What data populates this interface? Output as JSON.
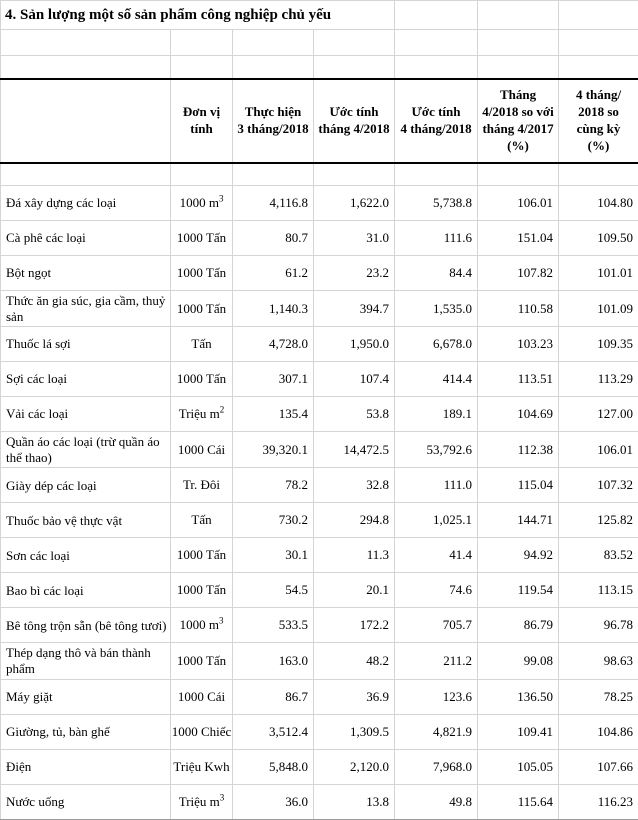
{
  "title": "4. Sản lượng một số sản phẩm công nghiệp chủ yếu",
  "colors": {
    "grid_line": "#d4d4d4",
    "heavy_line": "#000000",
    "text": "#000000",
    "background": "#ffffff"
  },
  "table": {
    "headers": [
      "",
      "Đơn vị\ntính",
      "Thực hiện\n3 tháng/2018",
      "Ước tính\ntháng 4/2018",
      "Ước tính\n4 tháng/2018",
      "Tháng\n4/2018 so với\ntháng 4/2017\n(%)",
      "4 tháng/\n2018 so\ncùng kỳ\n(%)"
    ],
    "rows": [
      {
        "name": "Đá xây dựng các loại",
        "unit": "1000 m",
        "unit_sup": "3",
        "values": [
          "4,116.8",
          "1,622.0",
          "5,738.8",
          "106.01",
          "104.80"
        ]
      },
      {
        "name": "Cà phê các loại",
        "unit": "1000 Tấn",
        "unit_sup": "",
        "values": [
          "80.7",
          "31.0",
          "111.6",
          "151.04",
          "109.50"
        ]
      },
      {
        "name": "Bột ngọt",
        "unit": "1000 Tấn",
        "unit_sup": "",
        "values": [
          "61.2",
          "23.2",
          "84.4",
          "107.82",
          "101.01"
        ]
      },
      {
        "name": "Thức ăn gia súc, gia cầm, thuỷ sản",
        "unit": "1000 Tấn",
        "unit_sup": "",
        "values": [
          "1,140.3",
          "394.7",
          "1,535.0",
          "110.58",
          "101.09"
        ]
      },
      {
        "name": "Thuốc lá sợi",
        "unit": "Tấn",
        "unit_sup": "",
        "values": [
          "4,728.0",
          "1,950.0",
          "6,678.0",
          "103.23",
          "109.35"
        ]
      },
      {
        "name": "Sợi các loại",
        "unit": "1000 Tấn",
        "unit_sup": "",
        "values": [
          "307.1",
          "107.4",
          "414.4",
          "113.51",
          "113.29"
        ]
      },
      {
        "name": "Vải các loại",
        "unit": "Triệu m",
        "unit_sup": "2",
        "values": [
          "135.4",
          "53.8",
          "189.1",
          "104.69",
          "127.00"
        ]
      },
      {
        "name": "Quần áo các loại (trừ quần áo thể thao)",
        "unit": "1000 Cái",
        "unit_sup": "",
        "values": [
          "39,320.1",
          "14,472.5",
          "53,792.6",
          "112.38",
          "106.01"
        ]
      },
      {
        "name": "Giày dép các loại",
        "unit": "Tr. Đôi",
        "unit_sup": "",
        "values": [
          "78.2",
          "32.8",
          "111.0",
          "115.04",
          "107.32"
        ]
      },
      {
        "name": "Thuốc bảo vệ thực vật",
        "unit": "Tấn",
        "unit_sup": "",
        "values": [
          "730.2",
          "294.8",
          "1,025.1",
          "144.71",
          "125.82"
        ]
      },
      {
        "name": "Sơn các loại",
        "unit": "1000 Tấn",
        "unit_sup": "",
        "values": [
          "30.1",
          "11.3",
          "41.4",
          "94.92",
          "83.52"
        ]
      },
      {
        "name": "Bao bì các loại",
        "unit": "1000 Tấn",
        "unit_sup": "",
        "values": [
          "54.5",
          "20.1",
          "74.6",
          "119.54",
          "113.15"
        ]
      },
      {
        "name": "Bê tông trộn sẵn (bê tông tươi)",
        "unit": "1000 m",
        "unit_sup": "3",
        "values": [
          "533.5",
          "172.2",
          "705.7",
          "86.79",
          "96.78"
        ]
      },
      {
        "name": "Thép dạng thô và bán thành phẩm",
        "unit": "1000 Tấn",
        "unit_sup": "",
        "values": [
          "163.0",
          "48.2",
          "211.2",
          "99.08",
          "98.63"
        ]
      },
      {
        "name": "Máy giặt",
        "unit": "1000 Cái",
        "unit_sup": "",
        "values": [
          "86.7",
          "36.9",
          "123.6",
          "136.50",
          "78.25"
        ]
      },
      {
        "name": "Giường, tủ, bàn ghế",
        "unit": "1000 Chiếc",
        "unit_sup": "",
        "values": [
          "3,512.4",
          "1,309.5",
          "4,821.9",
          "109.41",
          "104.86"
        ]
      },
      {
        "name": "Điện",
        "unit": "Triệu Kwh",
        "unit_sup": "",
        "values": [
          "5,848.0",
          "2,120.0",
          "7,968.0",
          "105.05",
          "107.66"
        ]
      },
      {
        "name": "Nước uống",
        "unit": "Triệu m",
        "unit_sup": "3",
        "values": [
          "36.0",
          "13.8",
          "49.8",
          "115.64",
          "116.23"
        ]
      }
    ]
  }
}
